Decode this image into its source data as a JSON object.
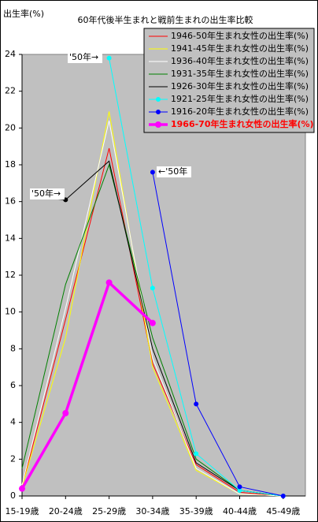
{
  "chart_data": {
    "type": "line",
    "title": "60年代後半生まれと戦前生まれの出生率比較",
    "y_label": "出生率(%)",
    "categories": [
      "15-19歳",
      "20-24歳",
      "25-29歳",
      "30-34歳",
      "35-39歳",
      "40-44歳",
      "45-49歳"
    ],
    "ylim": [
      0,
      24
    ],
    "yticks": [
      0,
      2,
      4,
      6,
      8,
      10,
      12,
      14,
      16,
      18,
      20,
      22,
      24
    ],
    "grid": false,
    "legend": "top-right",
    "background": "#c0c0c0",
    "series": [
      {
        "name": "1946-50年生まれ女性の出生率(%)",
        "color": "#ff0000",
        "width": 1,
        "markers": false,
        "values": [
          0.5,
          9.6,
          18.9,
          7.2,
          1.7,
          0.2,
          0
        ]
      },
      {
        "name": "1941-45年生まれ女性の出生率(%)",
        "color": "#ffff00",
        "width": 1,
        "markers": false,
        "values": [
          0.5,
          8.6,
          20.9,
          7.0,
          1.4,
          0.1,
          0
        ]
      },
      {
        "name": "1936-40年生まれ女性の出生率(%)",
        "color": "#ffffff",
        "width": 1,
        "markers": false,
        "values": [
          0.6,
          10.2,
          20.4,
          7.5,
          1.5,
          0.1,
          0
        ]
      },
      {
        "name": "1931-35年生まれ女性の出生率(%)",
        "color": "#008000",
        "width": 1,
        "markers": false,
        "values": [
          1.5,
          11.5,
          18.0,
          8.6,
          2.0,
          0.3,
          0
        ]
      },
      {
        "name": "1926-30年生まれ女性の出生率(%)",
        "color": "#000000",
        "width": 1,
        "markers": false,
        "values": [
          null,
          16.1,
          18.2,
          8.0,
          1.8,
          0.3,
          0
        ]
      },
      {
        "name": "1921-25年生まれ女性の出生率(%)",
        "color": "#00ffff",
        "width": 1,
        "markers": true,
        "values": [
          null,
          null,
          23.8,
          11.3,
          2.3,
          0.3,
          0
        ]
      },
      {
        "name": "1916-20年生まれ女性の出生率(%)",
        "color": "#0000ff",
        "width": 1,
        "markers": true,
        "values": [
          null,
          null,
          null,
          17.6,
          5.0,
          0.5,
          0
        ]
      },
      {
        "name": "1966-70年生まれ女性の出生率(%)",
        "color": "#ff00ff",
        "width": 3.5,
        "markers": true,
        "values": [
          0.4,
          4.5,
          11.6,
          9.4,
          null,
          null,
          null
        ]
      }
    ],
    "annotations": [
      "'50年→",
      "'50年→",
      "←'50年"
    ]
  }
}
